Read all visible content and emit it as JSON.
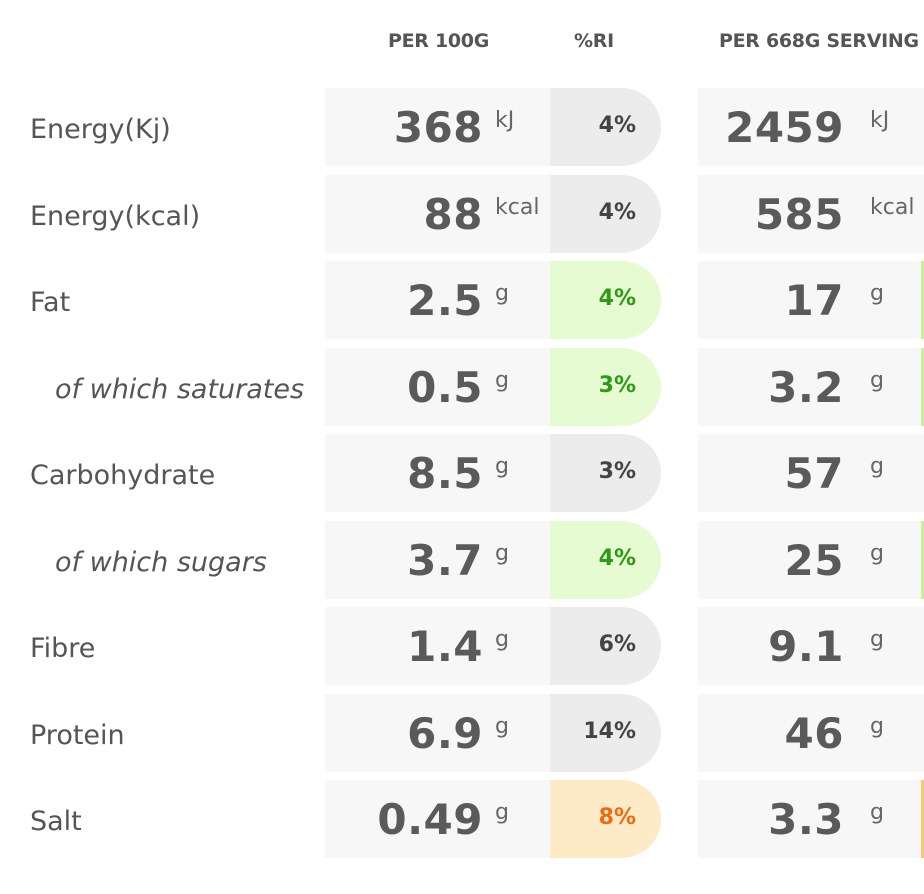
{
  "header": {
    "per_100g": "PER 100G",
    "ri": "%RI",
    "per_serving": "PER 668G SERVING"
  },
  "rows": [
    {
      "label": "Energy(Kj)",
      "sub": false,
      "value_100g": "368",
      "unit_100g": "kJ",
      "ri": "4%",
      "ri_level": "neutral",
      "value_serving": "2459",
      "unit_serving": "kJ"
    },
    {
      "label": "Energy(kcal)",
      "sub": false,
      "value_100g": "88",
      "unit_100g": "kcal",
      "ri": "4%",
      "ri_level": "neutral",
      "value_serving": "585",
      "unit_serving": "kcal"
    },
    {
      "label": "Fat",
      "sub": false,
      "value_100g": "2.5",
      "unit_100g": "g",
      "ri": "4%",
      "ri_level": "low",
      "value_serving": "17",
      "unit_serving": "g"
    },
    {
      "label": "of which saturates",
      "sub": true,
      "value_100g": "0.5",
      "unit_100g": "g",
      "ri": "3%",
      "ri_level": "low",
      "value_serving": "3.2",
      "unit_serving": "g"
    },
    {
      "label": "Carbohydrate",
      "sub": false,
      "value_100g": "8.5",
      "unit_100g": "g",
      "ri": "3%",
      "ri_level": "neutral",
      "value_serving": "57",
      "unit_serving": "g"
    },
    {
      "label": "of which sugars",
      "sub": true,
      "value_100g": "3.7",
      "unit_100g": "g",
      "ri": "4%",
      "ri_level": "low",
      "value_serving": "25",
      "unit_serving": "g"
    },
    {
      "label": "Fibre",
      "sub": false,
      "value_100g": "1.4",
      "unit_100g": "g",
      "ri": "6%",
      "ri_level": "neutral",
      "value_serving": "9.1",
      "unit_serving": "g"
    },
    {
      "label": "Protein",
      "sub": false,
      "value_100g": "6.9",
      "unit_100g": "g",
      "ri": "14%",
      "ri_level": "neutral",
      "value_serving": "46",
      "unit_serving": "g"
    },
    {
      "label": "Salt",
      "sub": false,
      "value_100g": "0.49",
      "unit_100g": "g",
      "ri": "8%",
      "ri_level": "medium",
      "value_serving": "3.3",
      "unit_serving": "g"
    }
  ],
  "colors": {
    "low": "#2e9a16",
    "low_bg": "#e6fbd2",
    "medium": "#ee6a12",
    "medium_bg": "#fdebc8",
    "neutral_bg": "#ececec",
    "cell_bg": "#f7f7f7",
    "text": "#555555"
  }
}
